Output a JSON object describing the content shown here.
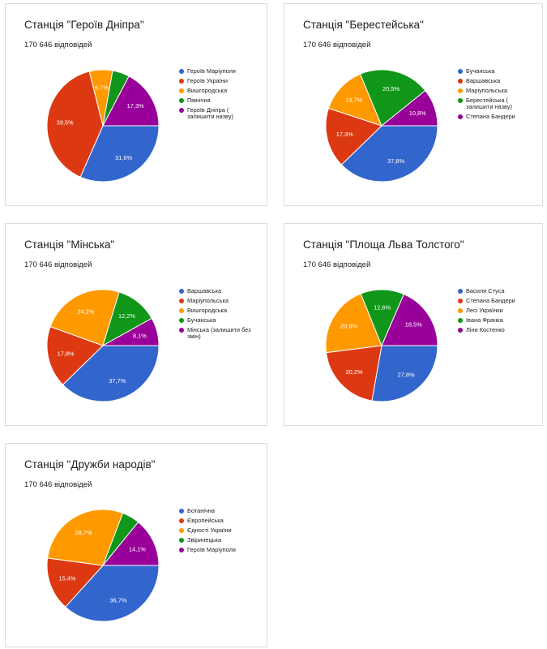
{
  "colors": {
    "blue": "#3366cc",
    "red": "#dc3912",
    "orange": "#ff9900",
    "green": "#109618",
    "purple": "#990099"
  },
  "cards": [
    {
      "title": "Станція \"Героїв Дніпра\"",
      "subtitle": "170 646 відповідей"
    },
    {
      "title": "Станція \"Берестейська\"",
      "subtitle": "170 646 відповідей"
    },
    {
      "title": "Станція \"Мінська\"",
      "subtitle": "170 646 відповідей"
    },
    {
      "title": "Станція \"Площа Льва Толстого\"",
      "subtitle": "170 646 відповідей"
    },
    {
      "title": "Станція \"Дружби народів\"",
      "subtitle": "170 646 відповідей"
    }
  ],
  "chart_data": [
    {
      "type": "pie",
      "title": "Станція \"Героїв Дніпра\"",
      "subtitle": "170 646 відповідей",
      "legend_position": "right",
      "slices": [
        {
          "label": "Героїв Маріуполя",
          "value": 31.6,
          "display": "31,6%",
          "color": "#3366cc"
        },
        {
          "label": "Героїв України",
          "value": 39.5,
          "display": "39,5%",
          "color": "#dc3912"
        },
        {
          "label": "Вишгородська",
          "value": 6.7,
          "display": "6,7%",
          "color": "#ff9900"
        },
        {
          "label": "Північна",
          "value": 4.9,
          "display": "",
          "color": "#109618"
        },
        {
          "label": "Героїв Дніпра ( залишити назву)",
          "value": 17.3,
          "display": "17,3%",
          "color": "#990099"
        }
      ]
    },
    {
      "type": "pie",
      "title": "Станція \"Берестейська\"",
      "subtitle": "170 646 відповідей",
      "legend_position": "right",
      "slices": [
        {
          "label": "Бучанська",
          "value": 37.8,
          "display": "37,8%",
          "color": "#3366cc"
        },
        {
          "label": "Варшавська",
          "value": 17.3,
          "display": "17,3%",
          "color": "#dc3912"
        },
        {
          "label": "Маріупольська",
          "value": 13.7,
          "display": "13,7%",
          "color": "#ff9900"
        },
        {
          "label": "Берестейська ( залишити назву)",
          "value": 20.5,
          "display": "20,5%",
          "color": "#109618"
        },
        {
          "label": "Степана Бандери",
          "value": 10.8,
          "display": "10,8%",
          "color": "#990099"
        }
      ]
    },
    {
      "type": "pie",
      "title": "Станція \"Мінська\"",
      "subtitle": "170 646 відповідей",
      "legend_position": "right",
      "slices": [
        {
          "label": "Варшавська",
          "value": 37.7,
          "display": "37,7%",
          "color": "#3366cc"
        },
        {
          "label": "Маріупольська",
          "value": 17.8,
          "display": "17,8%",
          "color": "#dc3912"
        },
        {
          "label": "Вишгородська",
          "value": 24.2,
          "display": "24,2%",
          "color": "#ff9900"
        },
        {
          "label": "Бучанська",
          "value": 12.2,
          "display": "12,2%",
          "color": "#109618"
        },
        {
          "label": "Мінська (залишити без змін)",
          "value": 8.1,
          "display": "8,1%",
          "color": "#990099"
        }
      ]
    },
    {
      "type": "pie",
      "title": "Станція \"Площа Льва Толстого\"",
      "subtitle": "170 646 відповідей",
      "legend_position": "right",
      "slices": [
        {
          "label": "Василя Стуса",
          "value": 27.8,
          "display": "27,8%",
          "color": "#3366cc"
        },
        {
          "label": "Степана Бандери",
          "value": 20.2,
          "display": "20,2%",
          "color": "#dc3912"
        },
        {
          "label": "Лесі Українки",
          "value": 20.9,
          "display": "20,9%",
          "color": "#ff9900"
        },
        {
          "label": "Івана Франка",
          "value": 12.6,
          "display": "12,6%",
          "color": "#109618"
        },
        {
          "label": "Ліни Костенко",
          "value": 18.5,
          "display": "18,5%",
          "color": "#990099"
        }
      ]
    },
    {
      "type": "pie",
      "title": "Станція \"Дружби народів\"",
      "subtitle": "170 646 відповідей",
      "legend_position": "right",
      "slices": [
        {
          "label": "Ботанічна",
          "value": 36.7,
          "display": "36,7%",
          "color": "#3366cc"
        },
        {
          "label": "Європейська",
          "value": 15.4,
          "display": "15,4%",
          "color": "#dc3912"
        },
        {
          "label": "Єдності України",
          "value": 28.7,
          "display": "28,7%",
          "color": "#ff9900"
        },
        {
          "label": "Звіринецька",
          "value": 5.1,
          "display": "",
          "color": "#109618"
        },
        {
          "label": "Героїв Маріуполя",
          "value": 14.1,
          "display": "14,1%",
          "color": "#990099"
        }
      ]
    }
  ]
}
